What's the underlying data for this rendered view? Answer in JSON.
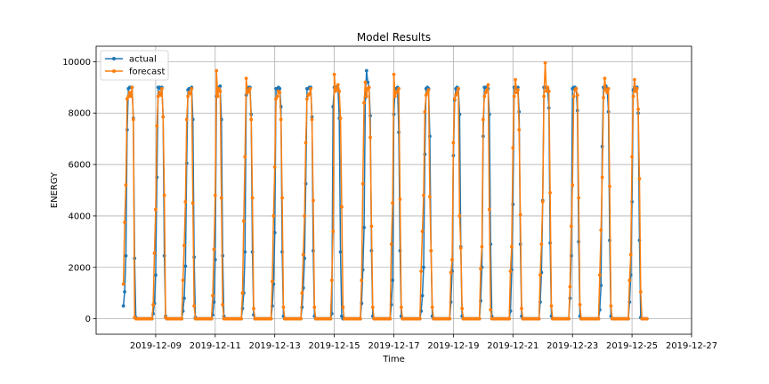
{
  "chart_data": {
    "type": "line",
    "title": "Model Results",
    "xlabel": "Time",
    "ylabel": "ENERGY",
    "xlim": [
      "2019-12-07T00:00",
      "2019-12-27T00:00"
    ],
    "ylim": [
      -600,
      10600
    ],
    "yticks": [
      0,
      2000,
      4000,
      6000,
      8000,
      10000
    ],
    "xticks": [
      "2019-12-09",
      "2019-12-11",
      "2019-12-13",
      "2019-12-15",
      "2019-12-17",
      "2019-12-19",
      "2019-12-21",
      "2019-12-23",
      "2019-12-25",
      "2019-12-27"
    ],
    "grid": true,
    "legend": "top-left",
    "sampling": "hourly",
    "start": "2019-12-07T22:00",
    "series": [
      {
        "name": "actual",
        "color": "#1f77b4",
        "values": [
          500,
          1050,
          2450,
          7350,
          8950,
          9000,
          9000,
          9000,
          7800,
          2350,
          50,
          0,
          0,
          0,
          0,
          0,
          0,
          0,
          0,
          0,
          0,
          0,
          0,
          0,
          200,
          600,
          1700,
          5500,
          9000,
          9000,
          8950,
          9000,
          7850,
          2450,
          100,
          0,
          0,
          0,
          0,
          0,
          0,
          0,
          0,
          0,
          0,
          0,
          0,
          0,
          300,
          800,
          2050,
          6050,
          8900,
          8950,
          8950,
          9000,
          7750,
          2400,
          50,
          0,
          0,
          0,
          0,
          0,
          0,
          0,
          0,
          0,
          0,
          0,
          0,
          0,
          150,
          650,
          2300,
          8650,
          8950,
          9000,
          9050,
          7750,
          2450,
          100,
          0,
          0,
          0,
          0,
          0,
          0,
          0,
          0,
          0,
          0,
          0,
          0,
          0,
          0,
          400,
          1000,
          2600,
          8700,
          8950,
          9000,
          9000,
          7950,
          2600,
          150,
          0,
          0,
          0,
          0,
          0,
          0,
          0,
          0,
          0,
          0,
          0,
          0,
          0,
          0,
          500,
          1350,
          3350,
          8950,
          8950,
          9000,
          8950,
          8250,
          2600,
          100,
          0,
          0,
          0,
          0,
          0,
          0,
          0,
          0,
          0,
          0,
          0,
          0,
          0,
          0,
          450,
          1200,
          2350,
          5250,
          8950,
          8950,
          9000,
          9000,
          7850,
          2650,
          100,
          0,
          0,
          0,
          0,
          0,
          0,
          0,
          0,
          0,
          0,
          0,
          0,
          0,
          200,
          8250,
          9000,
          9000,
          9000,
          8950,
          7800,
          2600,
          100,
          0,
          0,
          0,
          0,
          0,
          0,
          0,
          0,
          0,
          0,
          0,
          0,
          0,
          0,
          0,
          600,
          1900,
          3550,
          8600,
          9650,
          9200,
          9000,
          7900,
          2650,
          100,
          0,
          0,
          0,
          0,
          0,
          0,
          0,
          0,
          0,
          0,
          0,
          0,
          0,
          0,
          550,
          1500,
          7950,
          8950,
          8950,
          9000,
          7250,
          2650,
          100,
          0,
          0,
          0,
          0,
          0,
          0,
          0,
          0,
          0,
          0,
          0,
          0,
          0,
          0,
          0,
          300,
          900,
          2000,
          6400,
          8950,
          9000,
          8950,
          7100,
          2650,
          100,
          0,
          0,
          0,
          0,
          0,
          0,
          0,
          0,
          0,
          0,
          0,
          0,
          0,
          0,
          650,
          1850,
          6350,
          8500,
          8950,
          9000,
          8950,
          7950,
          2800,
          100,
          0,
          0,
          0,
          0,
          0,
          0,
          0,
          0,
          0,
          0,
          0,
          0,
          0,
          0,
          700,
          2000,
          7100,
          9000,
          9000,
          9000,
          8950,
          7950,
          2900,
          100,
          0,
          0,
          0,
          0,
          0,
          0,
          0,
          0,
          0,
          0,
          0,
          0,
          0,
          0,
          300,
          1900,
          4450,
          9000,
          9000,
          8950,
          9000,
          8050,
          2900,
          100,
          0,
          0,
          0,
          0,
          0,
          0,
          0,
          0,
          0,
          0,
          0,
          0,
          0,
          0,
          650,
          1800,
          4600,
          9000,
          9000,
          9000,
          8950,
          8200,
          2950,
          100,
          0,
          0,
          0,
          0,
          0,
          0,
          0,
          0,
          0,
          0,
          0,
          0,
          0,
          0,
          800,
          2450,
          8950,
          9000,
          9000,
          8950,
          8100,
          3000,
          100,
          0,
          0,
          0,
          0,
          0,
          0,
          0,
          0,
          0,
          0,
          0,
          0,
          0,
          0,
          0,
          350,
          1300,
          6700,
          9000,
          9000,
          9050,
          8950,
          8050,
          3050,
          100,
          0,
          0,
          0,
          0,
          0,
          0,
          0,
          0,
          0,
          0,
          0,
          0,
          0,
          0,
          650,
          1700,
          4550,
          8900,
          9000,
          9000,
          9000,
          8000,
          3050,
          50,
          0,
          0,
          0,
          0,
          0
        ]
      },
      {
        "name": "forecast",
        "color": "#ff7f0e",
        "values": [
          1350,
          3750,
          5200,
          8550,
          8650,
          8800,
          8650,
          9000,
          7750,
          50,
          0,
          0,
          0,
          0,
          0,
          0,
          0,
          0,
          0,
          0,
          0,
          0,
          0,
          0,
          550,
          2550,
          4250,
          7500,
          8650,
          8800,
          8700,
          8950,
          7850,
          4800,
          50,
          0,
          0,
          0,
          0,
          0,
          0,
          0,
          0,
          0,
          0,
          0,
          0,
          0,
          1500,
          2850,
          4550,
          7750,
          8650,
          8800,
          8750,
          8950,
          4500,
          500,
          0,
          0,
          0,
          0,
          0,
          0,
          0,
          0,
          0,
          0,
          0,
          0,
          0,
          0,
          900,
          2700,
          4800,
          9650,
          8650,
          8950,
          8850,
          4700,
          550,
          0,
          0,
          0,
          0,
          0,
          0,
          0,
          0,
          0,
          0,
          0,
          0,
          0,
          0,
          0,
          1000,
          3800,
          6300,
          9350,
          8800,
          8850,
          8950,
          7750,
          4700,
          400,
          0,
          0,
          0,
          0,
          0,
          0,
          0,
          0,
          0,
          0,
          0,
          0,
          0,
          0,
          1450,
          4000,
          5900,
          8550,
          8650,
          8850,
          8800,
          7750,
          4700,
          450,
          0,
          0,
          0,
          0,
          0,
          0,
          0,
          0,
          0,
          0,
          0,
          0,
          0,
          0,
          1000,
          2500,
          4000,
          6850,
          8550,
          8700,
          8750,
          8950,
          7750,
          4600,
          450,
          0,
          0,
          0,
          0,
          0,
          0,
          0,
          0,
          0,
          0,
          0,
          0,
          0,
          1500,
          3400,
          9500,
          8850,
          8950,
          9100,
          8850,
          7800,
          4350,
          450,
          0,
          0,
          0,
          0,
          0,
          0,
          0,
          0,
          0,
          0,
          0,
          0,
          0,
          0,
          1500,
          5250,
          8400,
          9200,
          8650,
          8950,
          9000,
          7050,
          3600,
          450,
          0,
          0,
          0,
          0,
          0,
          0,
          0,
          0,
          0,
          0,
          0,
          0,
          0,
          0,
          2900,
          4500,
          9500,
          8650,
          8800,
          8850,
          8950,
          4650,
          450,
          0,
          0,
          0,
          0,
          0,
          0,
          0,
          0,
          0,
          0,
          0,
          0,
          0,
          0,
          0,
          1850,
          3400,
          4800,
          8050,
          8700,
          8800,
          8900,
          4750,
          2650,
          450,
          0,
          0,
          0,
          0,
          0,
          0,
          0,
          0,
          0,
          0,
          0,
          0,
          0,
          0,
          1800,
          2300,
          6850,
          8550,
          8700,
          8800,
          8950,
          4000,
          2750,
          400,
          0,
          0,
          0,
          0,
          0,
          0,
          0,
          0,
          0,
          0,
          0,
          0,
          0,
          0,
          1950,
          2800,
          7750,
          8650,
          8800,
          8900,
          9100,
          4250,
          350,
          0,
          0,
          0,
          0,
          0,
          0,
          0,
          0,
          0,
          0,
          0,
          0,
          0,
          0,
          0,
          1850,
          2800,
          6650,
          8650,
          9300,
          8800,
          8900,
          7350,
          4050,
          400,
          0,
          0,
          0,
          0,
          0,
          0,
          0,
          0,
          0,
          0,
          0,
          0,
          0,
          0,
          1700,
          2900,
          4550,
          8650,
          9950,
          8850,
          9000,
          8850,
          4900,
          500,
          0,
          0,
          0,
          0,
          0,
          0,
          0,
          0,
          0,
          0,
          0,
          0,
          0,
          0,
          1250,
          3600,
          5200,
          8650,
          8900,
          8950,
          8700,
          4700,
          550,
          0,
          0,
          0,
          0,
          0,
          0,
          0,
          0,
          0,
          0,
          0,
          0,
          0,
          0,
          0,
          1700,
          3450,
          5500,
          8600,
          9350,
          8900,
          8800,
          8950,
          5150,
          500,
          0,
          0,
          0,
          0,
          0,
          0,
          0,
          0,
          0,
          0,
          0,
          0,
          0,
          0,
          1500,
          2500,
          6300,
          8650,
          9300,
          8850,
          8950,
          8150,
          5450,
          1050,
          0,
          0,
          0,
          0,
          0
        ]
      }
    ]
  }
}
